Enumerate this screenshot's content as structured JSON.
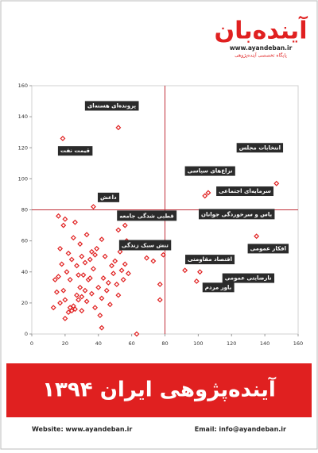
{
  "header": {
    "logo": "آینده‌بان",
    "url": "www.ayandeban.ir",
    "tagline": "پایگاه تخصصی آینده‌پژوهی"
  },
  "chart_data": {
    "type": "scatter",
    "color": "#e02020",
    "x": [
      52,
      18.6,
      37,
      104,
      106,
      147,
      104,
      135,
      92,
      99,
      101,
      77,
      77,
      79,
      73,
      69,
      63,
      42,
      56,
      52,
      13,
      15,
      17,
      19,
      20,
      22,
      23,
      24,
      25,
      26,
      27,
      28,
      29,
      30,
      31,
      32,
      33,
      34,
      35,
      36,
      37,
      38,
      39,
      40,
      41,
      42,
      43,
      44,
      45,
      46,
      47,
      48,
      49,
      50,
      51,
      52,
      53,
      54,
      55,
      56,
      57,
      58,
      16,
      17,
      18,
      19,
      20,
      21,
      22,
      24,
      25,
      27,
      29,
      30,
      32,
      33,
      35,
      38,
      42,
      16,
      26,
      14,
      23,
      28,
      36,
      30,
      20
    ],
    "values": [
      133,
      126,
      82,
      89,
      91,
      97,
      77,
      63,
      41,
      34,
      40,
      32,
      22,
      51,
      47,
      49,
      0,
      4,
      70,
      67,
      17,
      27,
      20,
      28,
      22,
      14,
      17,
      15,
      18,
      16,
      25,
      22,
      30,
      24,
      38,
      28,
      21,
      35,
      48,
      26,
      42,
      17,
      55,
      30,
      12,
      23,
      36,
      50,
      28,
      33,
      19,
      44,
      39,
      47,
      32,
      25,
      53,
      41,
      35,
      45,
      60,
      39,
      37,
      55,
      45,
      70,
      74,
      40,
      52,
      48,
      62,
      44,
      58,
      50,
      46,
      64,
      36,
      51,
      61,
      76,
      72,
      35,
      35,
      38,
      53,
      15,
      10
    ],
    "xlim": [
      0,
      160
    ],
    "ylim": [
      0,
      160
    ],
    "xticks": [
      0,
      20,
      40,
      60,
      80,
      100,
      120,
      140,
      160
    ],
    "yticks": [
      0,
      20,
      40,
      60,
      80,
      100,
      120,
      140,
      160
    ],
    "divider": {
      "x": 80,
      "y": 80
    },
    "annotations": [
      {
        "label": "پرونده‌ای هسته‌ای",
        "x": 48,
        "y": 147
      },
      {
        "label": "قیمت نفت",
        "x": 26,
        "y": 118
      },
      {
        "label": "انتخابات مجلس",
        "x": 137,
        "y": 120
      },
      {
        "label": "نزاع‌های سیاسی",
        "x": 107,
        "y": 105
      },
      {
        "label": "سرمایه‌ای اجتماعی",
        "x": 128,
        "y": 92
      },
      {
        "label": "داعش",
        "x": 46,
        "y": 88
      },
      {
        "label": "یاس و سرخوردگی جوانان",
        "x": 123,
        "y": 77
      },
      {
        "label": "قطبی شدگی جامعه",
        "x": 69,
        "y": 76
      },
      {
        "label": "افکار عمومی",
        "x": 142,
        "y": 55
      },
      {
        "label": "تنش سبک زندگی",
        "x": 68,
        "y": 57
      },
      {
        "label": "اقتصاد مقاومتی",
        "x": 107,
        "y": 48
      },
      {
        "label": "نارضایتی عمومی",
        "x": 130,
        "y": 36
      },
      {
        "label": "باور مردم",
        "x": 112,
        "y": 30
      }
    ]
  },
  "footer": {
    "banner": "آینده‌پژوهی ایران ۱۳۹۴",
    "website": "Website: www.ayandeban.ir",
    "email": "Email: info@ayandeban.ir"
  }
}
